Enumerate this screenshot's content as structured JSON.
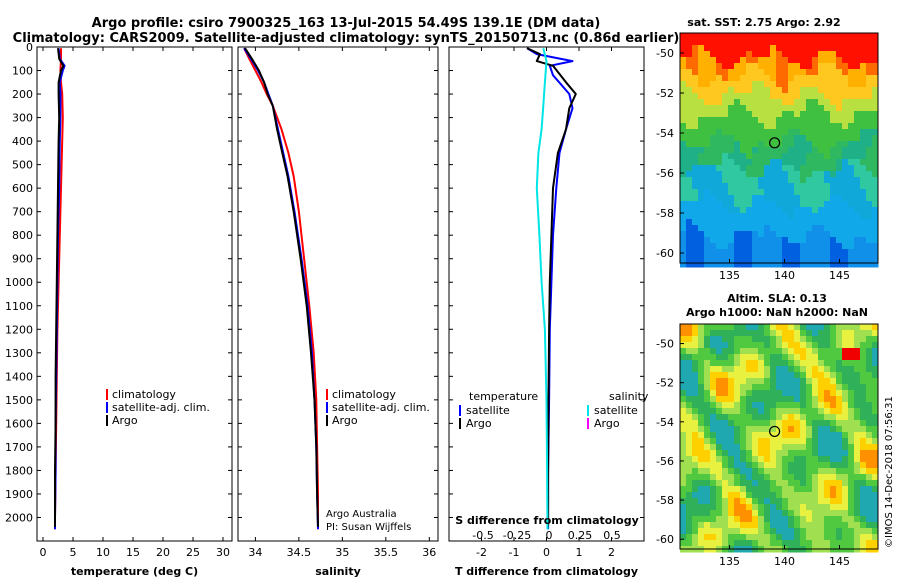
{
  "title": {
    "line1": "Argo profile: csiro 7900325_163 13-Jul-2015 54.49S 139.1E (DM data)",
    "line2": "Climatology: CARS2009. Satellite-adjusted climatology: synTS_20150713.nc (0.86d earlier)"
  },
  "colors": {
    "climatology": "#ff0000",
    "satellite": "#0000ff",
    "argo": "#000000",
    "satellite_salinity": "#00e5e5",
    "argo_salinity": "#ff00ff"
  },
  "chart_data": [
    {
      "type": "line",
      "id": "temperature",
      "xlabel": "temperature (deg C)",
      "ylabel": "",
      "xlim": [
        -1,
        31.5
      ],
      "ylim": [
        2100,
        0
      ],
      "xticks": [
        0,
        5,
        10,
        15,
        20,
        25,
        30
      ],
      "yticks": [
        0,
        100,
        200,
        300,
        400,
        500,
        600,
        700,
        800,
        900,
        1000,
        1100,
        1200,
        1300,
        1400,
        1500,
        1600,
        1700,
        1800,
        1900,
        2000
      ],
      "legend": [
        {
          "label": "climatology",
          "color": "#ff0000"
        },
        {
          "label": "satellite-adj. clim.",
          "color": "#0000ff"
        },
        {
          "label": "Argo",
          "color": "#000000"
        }
      ],
      "series": [
        {
          "name": "climatology",
          "color": "#ff0000",
          "points": [
            [
              3.0,
              5
            ],
            [
              3.0,
              50
            ],
            [
              2.9,
              100
            ],
            [
              3.0,
              150
            ],
            [
              3.2,
              200
            ],
            [
              3.3,
              300
            ],
            [
              3.2,
              400
            ],
            [
              3.0,
              600
            ],
            [
              2.8,
              800
            ],
            [
              2.6,
              1000
            ],
            [
              2.4,
              1200
            ],
            [
              2.3,
              1400
            ],
            [
              2.2,
              1600
            ],
            [
              2.1,
              1800
            ],
            [
              2.0,
              2000
            ],
            [
              2.0,
              2050
            ]
          ]
        },
        {
          "name": "satellite-adj. clim.",
          "color": "#0000ff",
          "points": [
            [
              2.6,
              5
            ],
            [
              2.8,
              50
            ],
            [
              3.6,
              80
            ],
            [
              3.3,
              100
            ],
            [
              2.8,
              150
            ],
            [
              2.9,
              200
            ],
            [
              2.9,
              300
            ],
            [
              2.8,
              400
            ],
            [
              2.7,
              600
            ],
            [
              2.5,
              800
            ],
            [
              2.4,
              1000
            ],
            [
              2.3,
              1200
            ],
            [
              2.2,
              1400
            ],
            [
              2.1,
              1600
            ],
            [
              2.1,
              1800
            ],
            [
              2.0,
              2000
            ],
            [
              2.0,
              2050
            ]
          ]
        },
        {
          "name": "Argo",
          "color": "#000000",
          "points": [
            [
              2.5,
              5
            ],
            [
              2.7,
              50
            ],
            [
              3.4,
              80
            ],
            [
              3.0,
              100
            ],
            [
              2.6,
              150
            ],
            [
              2.6,
              200
            ],
            [
              2.7,
              300
            ],
            [
              2.6,
              400
            ],
            [
              2.5,
              600
            ],
            [
              2.4,
              800
            ],
            [
              2.3,
              1000
            ],
            [
              2.2,
              1200
            ],
            [
              2.1,
              1400
            ],
            [
              2.1,
              1600
            ],
            [
              2.0,
              1800
            ],
            [
              2.0,
              2000
            ],
            [
              2.0,
              2040
            ]
          ]
        }
      ]
    },
    {
      "type": "line",
      "id": "salinity",
      "xlabel": "salinity",
      "ylabel": "",
      "xlim": [
        33.8,
        36.1
      ],
      "ylim": [
        2100,
        0
      ],
      "xticks": [
        34,
        34.5,
        35,
        35.5,
        36
      ],
      "legend": [
        {
          "label": "climatology",
          "color": "#ff0000"
        },
        {
          "label": "satellite-adj. clim.",
          "color": "#0000ff"
        },
        {
          "label": "Argo",
          "color": "#000000"
        }
      ],
      "annotations": [
        "Argo Australia",
        "PI: Susan Wijffels"
      ],
      "series": [
        {
          "name": "climatology",
          "color": "#ff0000",
          "points": [
            [
              33.87,
              5
            ],
            [
              33.93,
              50
            ],
            [
              34.0,
              100
            ],
            [
              34.07,
              150
            ],
            [
              34.13,
              200
            ],
            [
              34.2,
              250
            ],
            [
              34.3,
              350
            ],
            [
              34.38,
              450
            ],
            [
              34.44,
              550
            ],
            [
              34.5,
              700
            ],
            [
              34.56,
              900
            ],
            [
              34.62,
              1100
            ],
            [
              34.67,
              1300
            ],
            [
              34.7,
              1500
            ],
            [
              34.71,
              1700
            ],
            [
              34.72,
              1900
            ],
            [
              34.72,
              2050
            ]
          ]
        },
        {
          "name": "satellite-adj. clim.",
          "color": "#0000ff",
          "points": [
            [
              33.87,
              5
            ],
            [
              33.95,
              50
            ],
            [
              34.03,
              100
            ],
            [
              34.1,
              150
            ],
            [
              34.15,
              200
            ],
            [
              34.2,
              250
            ],
            [
              34.26,
              350
            ],
            [
              34.32,
              450
            ],
            [
              34.38,
              550
            ],
            [
              34.45,
              700
            ],
            [
              34.53,
              900
            ],
            [
              34.6,
              1100
            ],
            [
              34.65,
              1300
            ],
            [
              34.68,
              1500
            ],
            [
              34.7,
              1700
            ],
            [
              34.71,
              1900
            ],
            [
              34.72,
              2050
            ]
          ]
        },
        {
          "name": "Argo",
          "color": "#000000",
          "points": [
            [
              33.88,
              5
            ],
            [
              33.96,
              50
            ],
            [
              34.04,
              100
            ],
            [
              34.1,
              150
            ],
            [
              34.14,
              200
            ],
            [
              34.2,
              250
            ],
            [
              34.25,
              350
            ],
            [
              34.31,
              450
            ],
            [
              34.37,
              550
            ],
            [
              34.44,
              700
            ],
            [
              34.52,
              900
            ],
            [
              34.59,
              1100
            ],
            [
              34.64,
              1300
            ],
            [
              34.68,
              1500
            ],
            [
              34.7,
              1700
            ],
            [
              34.71,
              1900
            ],
            [
              34.72,
              2040
            ]
          ]
        }
      ]
    },
    {
      "type": "line",
      "id": "difference",
      "xlabel": "T difference from climatology",
      "ylabel": "",
      "xlim": [
        -3,
        3
      ],
      "ylim": [
        2100,
        0
      ],
      "xticks": [
        -2,
        -1,
        0,
        1,
        2
      ],
      "top_axis": {
        "label": "S difference from climatology",
        "ticks": [
          "-0.5",
          "-0.25",
          "0",
          "0.25",
          "0.5"
        ]
      },
      "legend": [
        {
          "label": "temperature",
          "color": "#000000",
          "heading": true
        },
        {
          "label": "satellite",
          "color": "#0000ff"
        },
        {
          "label": "Argo",
          "color": "#000000"
        },
        {
          "label": "salinity",
          "color": "#000000",
          "heading": true
        },
        {
          "label": "satellite",
          "color": "#00e5e5"
        },
        {
          "label": "Argo",
          "color": "#ff00ff"
        }
      ],
      "series": [
        {
          "name": "satellite",
          "color": "#0000ff",
          "points": [
            [
              -0.6,
              5
            ],
            [
              -0.3,
              30
            ],
            [
              0.8,
              60
            ],
            [
              0.1,
              80
            ],
            [
              0.2,
              120
            ],
            [
              0.7,
              200
            ],
            [
              0.8,
              260
            ],
            [
              0.6,
              350
            ],
            [
              0.4,
              450
            ],
            [
              0.3,
              600
            ],
            [
              0.2,
              800
            ],
            [
              0.15,
              1000
            ],
            [
              0.1,
              1200
            ],
            [
              0.08,
              1500
            ],
            [
              0.05,
              1800
            ],
            [
              0.05,
              2050
            ]
          ]
        },
        {
          "name": "Argo",
          "color": "#000000",
          "points": [
            [
              -0.6,
              5
            ],
            [
              -0.2,
              30
            ],
            [
              -0.3,
              60
            ],
            [
              0.2,
              80
            ],
            [
              0.6,
              150
            ],
            [
              0.9,
              200
            ],
            [
              0.7,
              260
            ],
            [
              0.6,
              350
            ],
            [
              0.35,
              450
            ],
            [
              0.2,
              600
            ],
            [
              0.15,
              800
            ],
            [
              0.1,
              1000
            ],
            [
              0.08,
              1200
            ],
            [
              0.06,
              1500
            ],
            [
              0.05,
              1800
            ],
            [
              0.05,
              2040
            ]
          ]
        },
        {
          "name": "satellite",
          "color": "#00e5e5",
          "points": [
            [
              -0.1,
              5
            ],
            [
              0.0,
              60
            ],
            [
              -0.05,
              150
            ],
            [
              -0.1,
              250
            ],
            [
              -0.15,
              350
            ],
            [
              -0.25,
              450
            ],
            [
              -0.3,
              600
            ],
            [
              -0.22,
              800
            ],
            [
              -0.15,
              1000
            ],
            [
              -0.05,
              1200
            ],
            [
              0.0,
              1500
            ],
            [
              0.02,
              1800
            ],
            [
              0.03,
              2050
            ]
          ]
        }
      ]
    }
  ],
  "maps": {
    "sst": {
      "title": "sat. SST: 2.75 Argo: 2.92",
      "xticks": [
        "135",
        "140",
        "145"
      ],
      "yticks": [
        "-50",
        "-52",
        "-54",
        "-56",
        "-58",
        "-60"
      ],
      "marker": {
        "lon": 139.1,
        "lat": -54.49
      }
    },
    "sla": {
      "title_line1": "Altim. SLA: 0.13",
      "title_line2": "Argo h1000: NaN h2000: NaN",
      "xticks": [
        "135",
        "140",
        "145"
      ],
      "yticks": [
        "-50",
        "-52",
        "-54",
        "-56",
        "-58",
        "-60"
      ],
      "marker": {
        "lon": 139.1,
        "lat": -54.49
      }
    }
  },
  "footer": "©IMOS 14-Dec-2018 07:56:31"
}
